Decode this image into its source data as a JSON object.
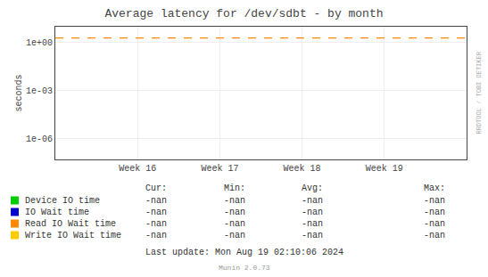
{
  "chart_data": {
    "type": "line",
    "title": "Average latency for /dev/sdbt - by month",
    "ylabel": "seconds",
    "categories": [
      "Week 16",
      "Week 17",
      "Week 18",
      "Week 19"
    ],
    "series": [
      {
        "name": "Device IO time",
        "color": "#00cc00",
        "values": [
          null,
          null,
          null,
          null
        ],
        "stats": [
          "-nan",
          "-nan",
          "-nan",
          "-nan"
        ]
      },
      {
        "name": "IO Wait time",
        "color": "#0000cc",
        "values": [
          null,
          null,
          null,
          null
        ],
        "stats": [
          "-nan",
          "-nan",
          "-nan",
          "-nan"
        ]
      },
      {
        "name": "Read IO Wait time",
        "color": "#ff8800",
        "values": [
          null,
          null,
          null,
          null
        ],
        "stats": [
          "-nan",
          "-nan",
          "-nan",
          "-nan"
        ]
      },
      {
        "name": "Write IO Wait time",
        "color": "#ffcc00",
        "values": [
          null,
          null,
          null,
          null
        ],
        "stats": [
          "-nan",
          "-nan",
          "-nan",
          "-nan"
        ]
      }
    ],
    "stats_headers": [
      "Cur:",
      "Min:",
      "Avg:",
      "Max:"
    ],
    "reference_lines": [
      {
        "value": 2.0,
        "color": "#ff8800",
        "line_style": "dashed"
      }
    ],
    "ylim": [
      5e-08,
      10
    ],
    "yticks": [
      {
        "value": 1e-06,
        "label": "1e-06"
      },
      {
        "value": 0.001,
        "label": "1e-03"
      },
      {
        "value": 1,
        "label": "1e+00"
      }
    ],
    "log": "y",
    "grid": true,
    "legend": "bottom",
    "annotations": [
      "Last update: Mon Aug 19 02:10:06 2024",
      "Munin 2.0.73",
      "RRDTOOL / TOBI OETIKER"
    ]
  }
}
